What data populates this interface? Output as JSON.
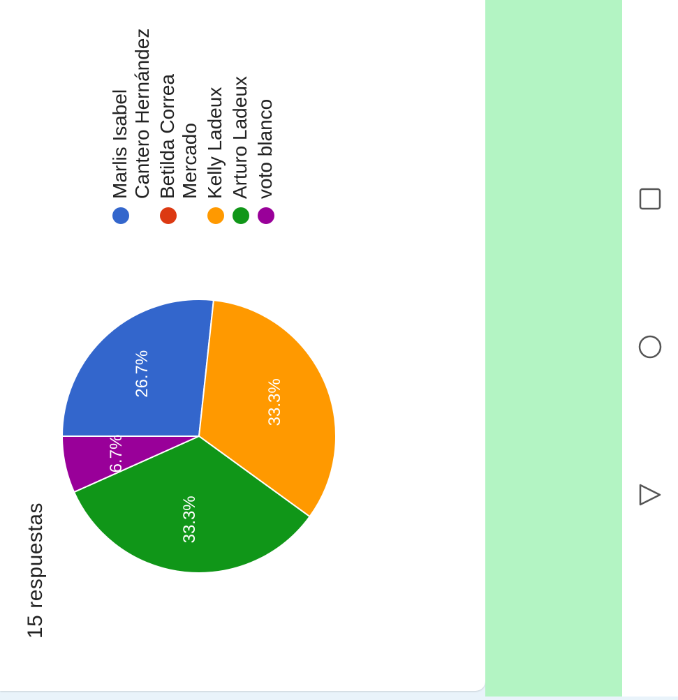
{
  "summary": {
    "response_count": "15 respuestas"
  },
  "chart_data": {
    "type": "pie",
    "slices": [
      {
        "label": "Marlis Isabel Cantero Hernández",
        "value": 26.7,
        "label_text": "26.7%",
        "color": "#3366cc"
      },
      {
        "label": "Betilda Correa Mercado",
        "value": 0,
        "label_text": "",
        "color": "#dc3912"
      },
      {
        "label": "Kelly Ladeux",
        "value": 33.3,
        "label_text": "33.3%",
        "color": "#ff9900"
      },
      {
        "label": "Arturo Ladeux",
        "value": 33.3,
        "label_text": "33.3%",
        "color": "#109618"
      },
      {
        "label": "voto blanco",
        "value": 6.7,
        "label_text": "6.7%",
        "color": "#990099"
      }
    ],
    "legend_position": "right"
  },
  "theme": {
    "band_color": "#b3f4c3",
    "nav_icon_color": "#555555"
  },
  "navbar": {
    "icons": [
      "square-icon",
      "circle-icon",
      "triangle-icon"
    ]
  }
}
